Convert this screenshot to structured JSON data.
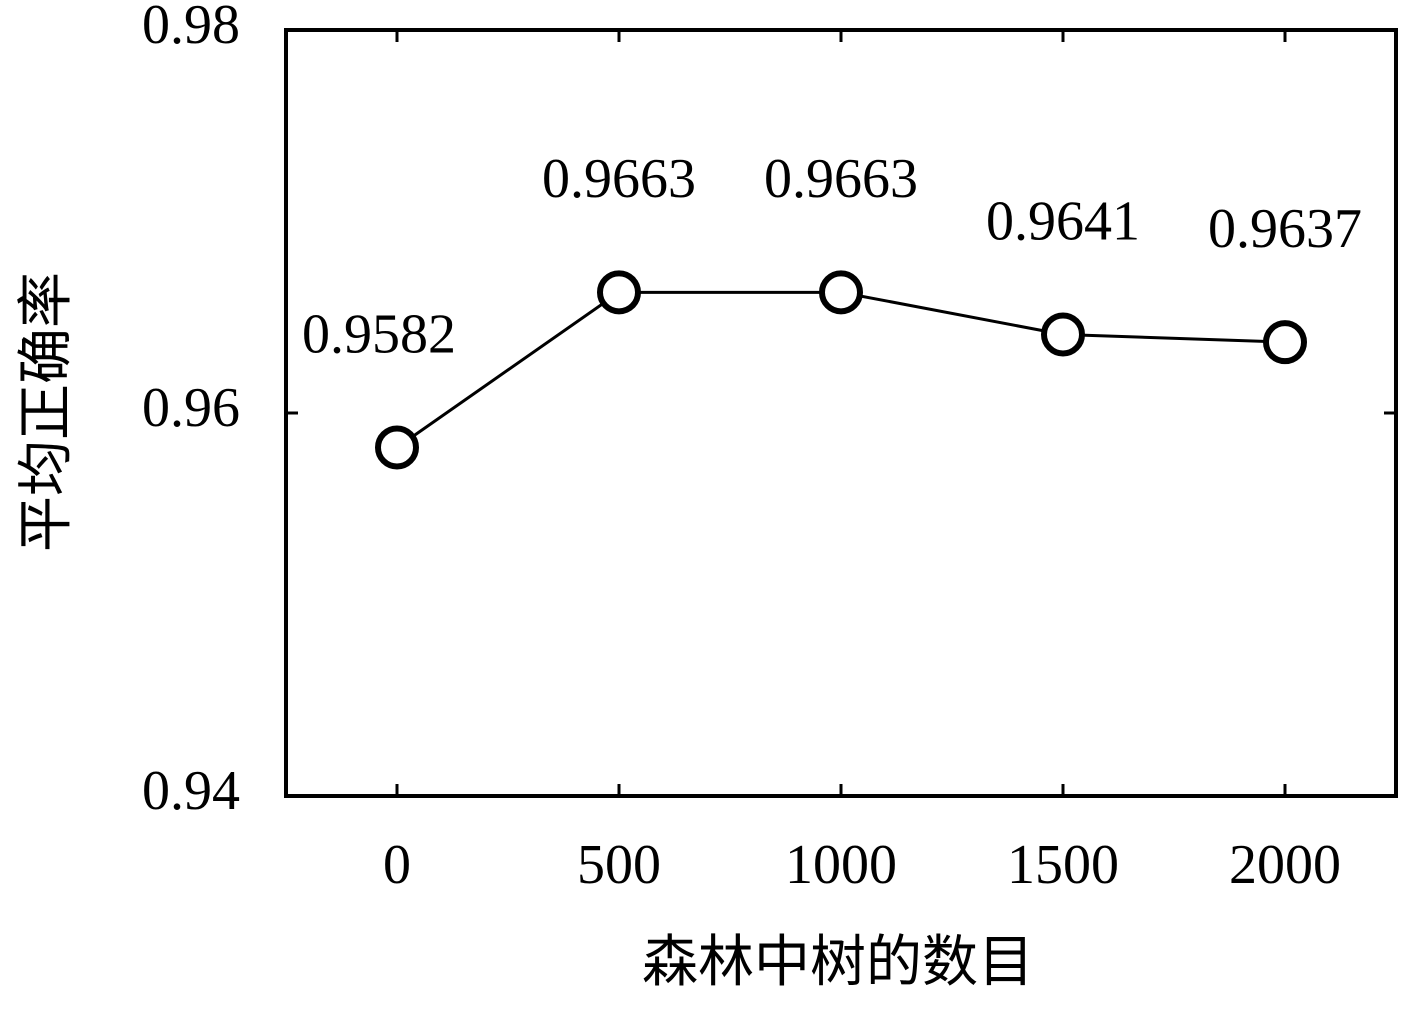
{
  "chart_data": {
    "type": "line",
    "x_label": "森林中树的数目",
    "y_label": "平均正确率",
    "x": [
      0,
      500,
      1000,
      1500,
      2000
    ],
    "values": [
      0.9582,
      0.9663,
      0.9663,
      0.9641,
      0.9637
    ],
    "color": "#000000",
    "xlim": [
      -250,
      2250
    ],
    "xticks": [
      0,
      500,
      1000,
      1500,
      2000
    ],
    "ylim": [
      0.94,
      0.98
    ],
    "yticks": [
      0.94,
      0.96,
      0.98
    ]
  }
}
